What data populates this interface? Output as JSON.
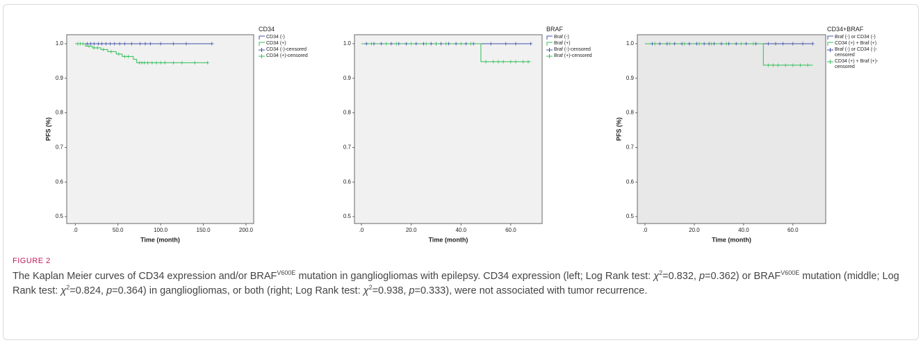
{
  "chart_data": [
    {
      "type": "step",
      "legend_title": "CD34",
      "xlabel": "Time (month)",
      "ylabel": "PFS (%)",
      "background": "#f1f1f1",
      "xlim": [
        -10,
        209
      ],
      "ylim": [
        0.48,
        1.026
      ],
      "xticks": [
        {
          "value": 0,
          "label": ".0"
        },
        {
          "value": 50,
          "label": "50.0"
        },
        {
          "value": 100,
          "label": "100.0"
        },
        {
          "value": 150,
          "label": "150.0"
        },
        {
          "value": 200,
          "label": "200.0"
        }
      ],
      "yticks": [
        0.5,
        0.6,
        0.7,
        0.8,
        0.9,
        {
          "value": 1,
          "label": "1.0"
        }
      ],
      "series": [
        {
          "name": "CD34 (-)",
          "color": "#3f51a5",
          "style": "step",
          "x": [
            0,
            160
          ],
          "values": [
            1,
            1
          ]
        },
        {
          "name": "CD34 (+)",
          "color": "#2fbf57",
          "style": "step",
          "x": [
            0,
            12,
            20,
            30,
            38,
            48,
            55,
            68,
            72,
            155
          ],
          "values": [
            1,
            0.993,
            0.988,
            0.983,
            0.977,
            0.97,
            0.963,
            0.955,
            0.945,
            0.945
          ]
        },
        {
          "name": "CD34 (-)-censored",
          "color": "#3f51a5",
          "style": "censored",
          "x": [
            14,
            18,
            22,
            27,
            31,
            36,
            41,
            46,
            52,
            58,
            66,
            76,
            82,
            88,
            100,
            115,
            130,
            160
          ],
          "values": [
            1,
            1,
            1,
            1,
            1,
            1,
            1,
            1,
            1,
            1,
            1,
            1,
            1,
            1,
            1,
            1,
            1,
            1
          ]
        },
        {
          "name": "CD34 (+)-censored",
          "color": "#2fbf57",
          "style": "censored",
          "x": [
            3,
            6,
            9,
            16,
            22,
            26,
            33,
            42,
            51,
            58,
            62,
            75,
            78,
            81,
            85,
            90,
            95,
            100,
            105,
            115,
            125,
            140,
            155
          ],
          "values": [
            1,
            1,
            1,
            0.993,
            0.988,
            0.988,
            0.983,
            0.977,
            0.97,
            0.963,
            0.963,
            0.945,
            0.945,
            0.945,
            0.945,
            0.945,
            0.945,
            0.945,
            0.945,
            0.945,
            0.945,
            0.945,
            0.945
          ]
        }
      ]
    },
    {
      "type": "step",
      "legend_title": "BRAF",
      "xlabel": "Time (month)",
      "background": "#f1f1f1",
      "xlim": [
        -2.8,
        72.6
      ],
      "ylim": [
        0.48,
        1.026
      ],
      "xticks": [
        {
          "value": 0,
          "label": ".0"
        },
        {
          "value": 20,
          "label": "20.0"
        },
        {
          "value": 40,
          "label": "40.0"
        },
        {
          "value": 60,
          "label": "60.0"
        }
      ],
      "yticks": [
        0.5,
        0.6,
        0.7,
        0.8,
        0.9,
        {
          "value": 1,
          "label": "1.0"
        }
      ],
      "series": [
        {
          "name": "Braf (-)",
          "color": "#3f51a5",
          "style": "step",
          "x": [
            0,
            68
          ],
          "values": [
            1,
            1
          ]
        },
        {
          "name": "Braf (+)",
          "color": "#2fbf57",
          "style": "step",
          "x": [
            0,
            48,
            68
          ],
          "values": [
            1,
            0.948,
            0.948
          ]
        },
        {
          "name": "Braf (-)-censored",
          "color": "#3f51a5",
          "style": "censored",
          "x": [
            2,
            5,
            8,
            12,
            15,
            18,
            22,
            25,
            28,
            30,
            32,
            35,
            38,
            42,
            45,
            52,
            58,
            62,
            68
          ],
          "values": [
            1,
            1,
            1,
            1,
            1,
            1,
            1,
            1,
            1,
            1,
            1,
            1,
            1,
            1,
            1,
            1,
            1,
            1,
            1
          ]
        },
        {
          "name": "Braf (+)-censored",
          "color": "#2fbf57",
          "style": "censored",
          "x": [
            4,
            10,
            14,
            20,
            26,
            30,
            34,
            40,
            44,
            50,
            53,
            55,
            57,
            60,
            62,
            65,
            67
          ],
          "values": [
            1,
            1,
            1,
            1,
            1,
            1,
            1,
            1,
            1,
            0.948,
            0.948,
            0.948,
            0.948,
            0.948,
            0.948,
            0.948,
            0.948
          ]
        }
      ]
    },
    {
      "type": "step",
      "legend_title": "CD34+BRAF",
      "xlabel": "Time (month)",
      "ylabel": "PFS (%)",
      "background": "#e8e8e8",
      "xlim": [
        -3.1,
        73.3
      ],
      "ylim": [
        0.48,
        1.026
      ],
      "xticks": [
        {
          "value": 0,
          "label": ".0"
        },
        {
          "value": 20,
          "label": "20.0"
        },
        {
          "value": 40,
          "label": "40.0"
        },
        {
          "value": 60,
          "label": "60.0"
        }
      ],
      "yticks": [
        0.5,
        0.6,
        0.7,
        0.8,
        0.9,
        {
          "value": 1,
          "label": "1.0"
        }
      ],
      "series": [
        {
          "name": "Braf (-) or CD34 (-)",
          "color": "#3f51a5",
          "style": "step",
          "x": [
            0,
            68
          ],
          "values": [
            1,
            1
          ]
        },
        {
          "name": "CD34 (+) + Braf (+)",
          "color": "#2fbf57",
          "style": "step",
          "x": [
            0,
            48,
            68
          ],
          "values": [
            1,
            0.938,
            0.938
          ]
        },
        {
          "name": "Braf (-) or CD34 (-)-censored",
          "color": "#3f51a5",
          "style": "censored",
          "x": [
            3,
            6,
            9,
            12,
            15,
            18,
            21,
            24,
            26,
            28,
            31,
            34,
            37,
            41,
            45,
            50,
            53,
            56,
            60,
            64,
            68
          ],
          "values": [
            1,
            1,
            1,
            1,
            1,
            1,
            1,
            1,
            1,
            1,
            1,
            1,
            1,
            1,
            1,
            1,
            1,
            1,
            1,
            1,
            1
          ]
        },
        {
          "name": "CD34 (+) + Braf (+)-censored",
          "color": "#2fbf57",
          "style": "censored",
          "x": [
            4,
            10,
            16,
            22,
            27,
            33,
            39,
            44,
            50,
            52,
            54,
            57,
            60,
            63,
            66
          ],
          "values": [
            1,
            1,
            1,
            1,
            1,
            1,
            1,
            1,
            0.938,
            0.938,
            0.938,
            0.938,
            0.938,
            0.938,
            0.938
          ]
        }
      ]
    }
  ],
  "figure": {
    "label": "FIGURE 2",
    "caption": [
      {
        "text": "The Kaplan Meier curves of CD34 expression and/or BRAF"
      },
      {
        "text": "V600E",
        "format": "sup"
      },
      {
        "text": " mutation in gangliogliomas with epilepsy. CD34 expression (left; Log Rank test: "
      },
      {
        "text": "χ",
        "format": "italic"
      },
      {
        "text": "2",
        "format": "sup"
      },
      {
        "text": "=0.832, "
      },
      {
        "text": "p",
        "format": "italic"
      },
      {
        "text": "=0.362) or BRAF"
      },
      {
        "text": "V600E",
        "format": "sup"
      },
      {
        "text": " mutation (middle; Log Rank test: "
      },
      {
        "text": "χ",
        "format": "italic"
      },
      {
        "text": "2",
        "format": "sup"
      },
      {
        "text": "=0.824, "
      },
      {
        "text": "p",
        "format": "italic"
      },
      {
        "text": "=0.364) in gangliogliomas, or both (right; Log Rank test: "
      },
      {
        "text": "χ",
        "format": "italic"
      },
      {
        "text": "2",
        "format": "sup"
      },
      {
        "text": "=0.938, "
      },
      {
        "text": "p",
        "format": "italic"
      },
      {
        "text": "=0.333), were not associated with tumor recurrence."
      }
    ]
  }
}
